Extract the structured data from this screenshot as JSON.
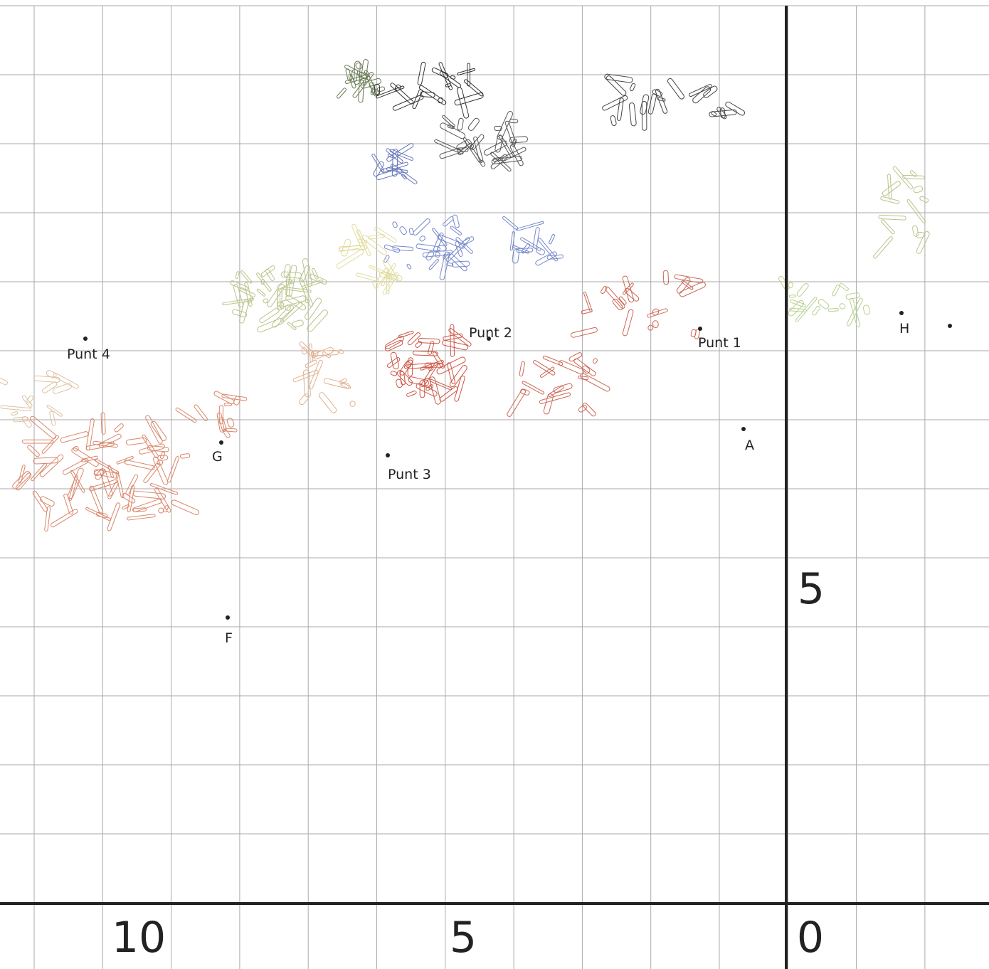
{
  "points": [
    {
      "label": "Punt 1"
    },
    {
      "label": "Punt 2"
    },
    {
      "label": "Punt 3"
    },
    {
      "label": "Punt 4"
    },
    {
      "label": "A"
    },
    {
      "label": "F"
    },
    {
      "label": "G"
    },
    {
      "label": "H"
    }
  ],
  "axis_labels": {
    "x": [
      "10",
      "5",
      "0"
    ],
    "y": [
      "5"
    ]
  }
}
